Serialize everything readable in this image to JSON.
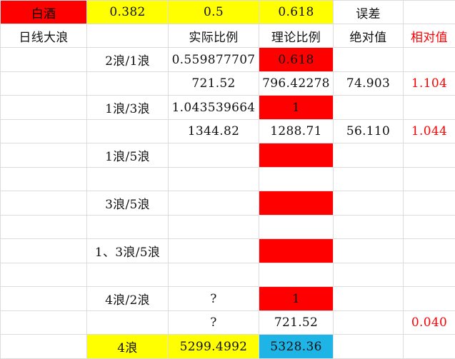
{
  "colors": {
    "red_fill": "#ff0000",
    "yellow_fill": "#ffff00",
    "blue_fill": "#1fb4e6",
    "red_text": "#ff0000",
    "gridline": "#dcdcdc"
  },
  "rows": [
    [
      "白酒",
      "0.382",
      "0.5",
      "0.618",
      "误差",
      ""
    ],
    [
      "日线大浪",
      "",
      "实际比例",
      "理论比例",
      "绝对值",
      "相对值"
    ],
    [
      "",
      "2浪/1浪",
      "0.559877707",
      "0.618",
      "",
      ""
    ],
    [
      "",
      "",
      "721.52",
      "796.42278",
      "74.903",
      "1.104"
    ],
    [
      "",
      "1浪/3浪",
      "1.043539664",
      "1",
      "",
      ""
    ],
    [
      "",
      "",
      "1344.82",
      "1288.71",
      "56.110",
      "1.044"
    ],
    [
      "",
      "1浪/5浪",
      "",
      "",
      "",
      ""
    ],
    [
      "",
      "",
      "",
      "",
      "",
      ""
    ],
    [
      "",
      "3浪/5浪",
      "",
      "",
      "",
      ""
    ],
    [
      "",
      "",
      "",
      "",
      "",
      ""
    ],
    [
      "",
      "1、3浪/5浪",
      "",
      "",
      "",
      ""
    ],
    [
      "",
      "",
      "",
      "",
      "",
      ""
    ],
    [
      "",
      "4浪/2浪",
      "?",
      "1",
      "",
      ""
    ],
    [
      "",
      "",
      "?",
      "721.52",
      "",
      "0.040"
    ],
    [
      "",
      "4浪",
      "5299.4992",
      "5328.36",
      "",
      ""
    ]
  ]
}
